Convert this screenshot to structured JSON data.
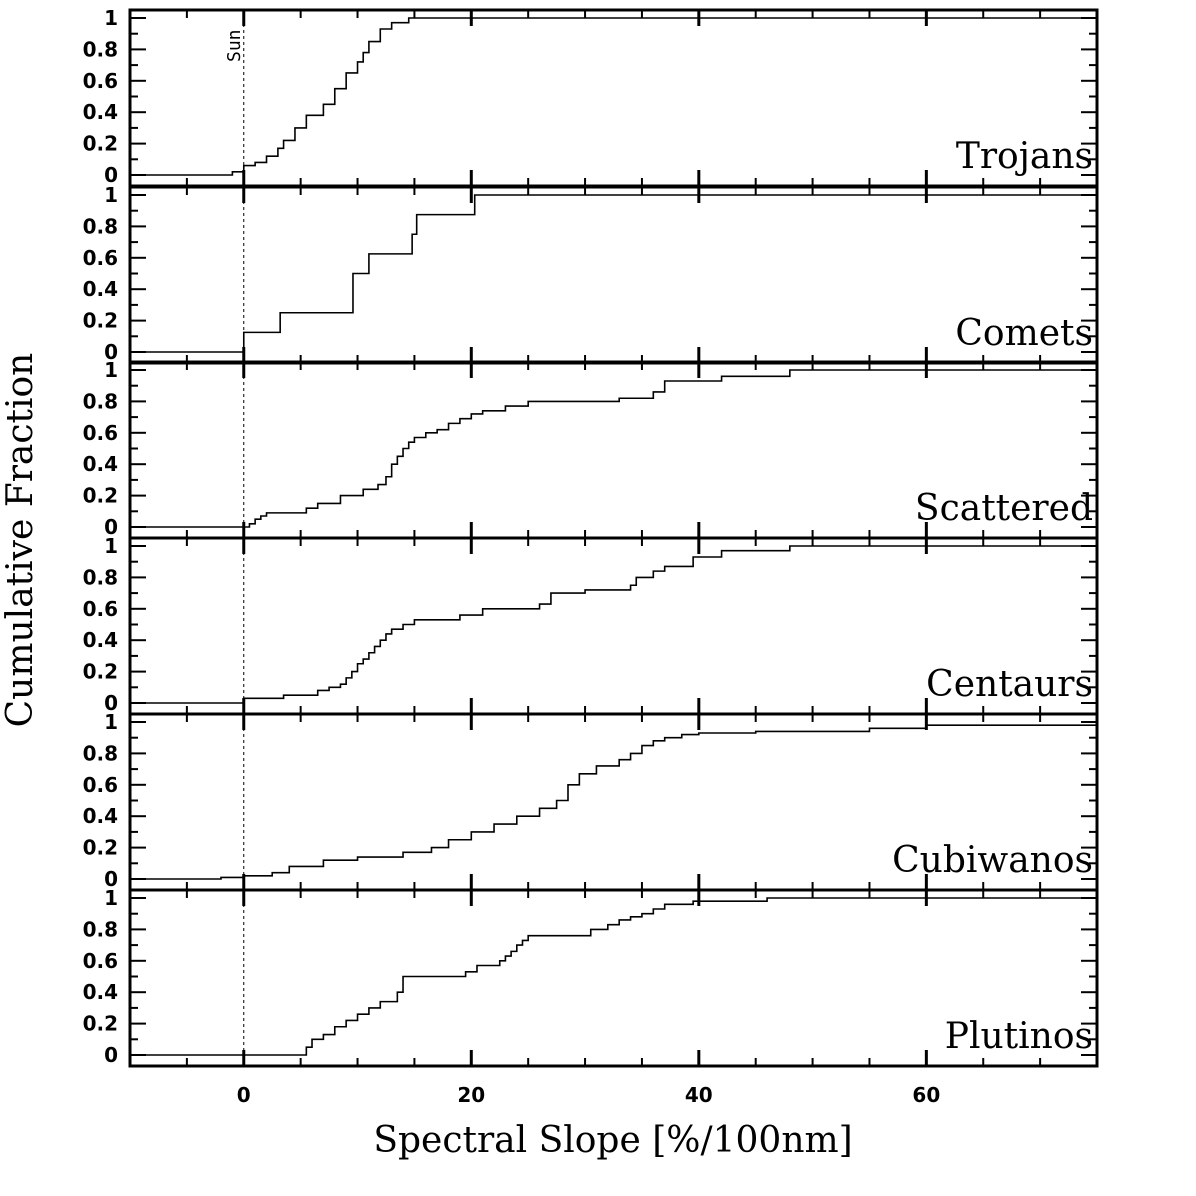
{
  "chart_data": {
    "type": "line",
    "step": true,
    "xlabel": "Spectral Slope [%/100nm]",
    "ylabel": "Cumulative Fraction",
    "xlim": [
      -10,
      75
    ],
    "ylim": [
      0,
      1
    ],
    "x_ticks": [
      0,
      20,
      40,
      60
    ],
    "x_tick_labels": [
      "0",
      "20",
      "40",
      "60"
    ],
    "y_ticks": [
      0,
      0.2,
      0.4,
      0.6,
      0.8,
      1
    ],
    "y_tick_labels": [
      "0",
      "0.2",
      "0.4",
      "0.6",
      "0.8",
      "1"
    ],
    "reference_line": {
      "x": 0,
      "label": "Sun",
      "style": "dashed"
    },
    "panels": [
      {
        "name": "Trojans",
        "x": [
          -10,
          -1.5,
          -1,
          0,
          1,
          2,
          3,
          3.5,
          4.5,
          5.5,
          6,
          7,
          8,
          9,
          10,
          10.5,
          11,
          12,
          13,
          14.5,
          75
        ],
        "y": [
          0,
          0,
          0.02,
          0.06,
          0.08,
          0.12,
          0.17,
          0.22,
          0.3,
          0.38,
          0.38,
          0.45,
          0.55,
          0.65,
          0.72,
          0.78,
          0.85,
          0.93,
          0.97,
          1,
          1
        ]
      },
      {
        "name": "Comets",
        "x": [
          -10,
          0,
          3.2,
          9.6,
          10,
          11,
          14.8,
          15.2,
          15.6,
          20.3,
          75
        ],
        "y": [
          0,
          0.125,
          0.25,
          0.5,
          0.5,
          0.625,
          0.75,
          0.875,
          0.875,
          1,
          1
        ]
      },
      {
        "name": "Scattered",
        "x": [
          -10,
          0.5,
          1,
          1.5,
          2,
          5.5,
          6.5,
          8.5,
          10.5,
          11.8,
          12.5,
          13,
          13.5,
          14,
          14.5,
          15,
          16,
          17,
          18,
          19,
          20,
          21,
          23,
          25,
          33,
          36,
          37,
          42,
          48,
          75
        ],
        "y": [
          0,
          0.02,
          0.05,
          0.07,
          0.09,
          0.12,
          0.15,
          0.2,
          0.24,
          0.27,
          0.32,
          0.4,
          0.45,
          0.5,
          0.54,
          0.57,
          0.6,
          0.62,
          0.66,
          0.69,
          0.72,
          0.74,
          0.77,
          0.8,
          0.82,
          0.86,
          0.93,
          0.96,
          1,
          1
        ]
      },
      {
        "name": "Centaurs",
        "x": [
          -10,
          0,
          3.5,
          6.5,
          7.5,
          8.5,
          9,
          9.5,
          10,
          10.5,
          11,
          11.5,
          12,
          12.5,
          13,
          14,
          15,
          16,
          19,
          21,
          26,
          27,
          30,
          34,
          34.5,
          36,
          37,
          38,
          39.5,
          42,
          48,
          75
        ],
        "y": [
          0,
          0.03,
          0.05,
          0.08,
          0.1,
          0.12,
          0.16,
          0.2,
          0.25,
          0.28,
          0.32,
          0.36,
          0.4,
          0.44,
          0.47,
          0.5,
          0.53,
          0.53,
          0.56,
          0.6,
          0.63,
          0.7,
          0.72,
          0.75,
          0.8,
          0.84,
          0.87,
          0.87,
          0.93,
          0.97,
          1,
          1
        ]
      },
      {
        "name": "Cubiwanos",
        "x": [
          -10,
          -2,
          0,
          2.5,
          4,
          7,
          10,
          14,
          16.5,
          18,
          20,
          22,
          24,
          26,
          27.5,
          28.5,
          29.5,
          31,
          33,
          34,
          35,
          36,
          37,
          38.5,
          40,
          45,
          55,
          60,
          75
        ],
        "y": [
          0,
          0.01,
          0.02,
          0.04,
          0.08,
          0.12,
          0.14,
          0.17,
          0.2,
          0.25,
          0.3,
          0.35,
          0.4,
          0.45,
          0.5,
          0.6,
          0.67,
          0.72,
          0.76,
          0.8,
          0.85,
          0.88,
          0.9,
          0.92,
          0.93,
          0.94,
          0.96,
          0.98,
          0.98
        ]
      },
      {
        "name": "Plutinos",
        "x": [
          -10,
          5.5,
          6,
          7,
          8,
          9,
          10,
          11,
          12,
          13.5,
          14,
          19.5,
          20.5,
          22.5,
          23,
          23.5,
          24,
          24.5,
          25,
          26,
          30.5,
          32,
          33,
          34,
          35,
          36,
          37,
          39.5,
          46,
          75
        ],
        "y": [
          0,
          0.05,
          0.1,
          0.13,
          0.18,
          0.22,
          0.26,
          0.3,
          0.34,
          0.4,
          0.5,
          0.53,
          0.57,
          0.6,
          0.63,
          0.66,
          0.7,
          0.73,
          0.76,
          0.76,
          0.8,
          0.83,
          0.86,
          0.88,
          0.9,
          0.93,
          0.96,
          0.98,
          1,
          1
        ]
      }
    ]
  }
}
